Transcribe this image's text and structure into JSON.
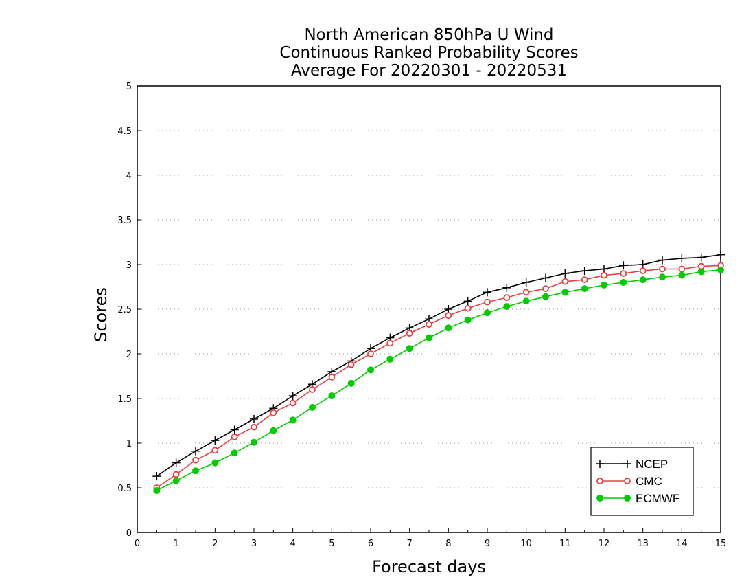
{
  "chart_data": {
    "type": "line",
    "title": [
      "North American 850hPa U Wind",
      "Continuous Ranked Probability Scores",
      "Average For 20220301 - 20220531"
    ],
    "xlabel": "Forecast days",
    "ylabel": "Scores",
    "xlim": [
      0,
      15
    ],
    "ylim": [
      0,
      5
    ],
    "xticks": [
      "0",
      "1",
      "2",
      "3",
      "4",
      "5",
      "6",
      "7",
      "8",
      "9",
      "10",
      "11",
      "12",
      "13",
      "14",
      "15"
    ],
    "yticks": [
      "0",
      "0.5",
      "1",
      "1.5",
      "2",
      "2.5",
      "3",
      "3.5",
      "4",
      "4.5",
      "5"
    ],
    "grid": "horizontal dotted",
    "legend_position": "bottom-right",
    "x": [
      0.5,
      1,
      1.5,
      2,
      2.5,
      3,
      3.5,
      4,
      4.5,
      5,
      5.5,
      6,
      6.5,
      7,
      7.5,
      8,
      8.5,
      9,
      9.5,
      10,
      10.5,
      11,
      11.5,
      12,
      12.5,
      13,
      13.5,
      14,
      14.5,
      15
    ],
    "series": [
      {
        "name": "NCEP",
        "color": "#000000",
        "marker": "plus",
        "values": [
          0.63,
          0.78,
          0.91,
          1.03,
          1.15,
          1.27,
          1.39,
          1.53,
          1.66,
          1.8,
          1.92,
          2.06,
          2.18,
          2.29,
          2.39,
          2.5,
          2.59,
          2.69,
          2.74,
          2.8,
          2.85,
          2.9,
          2.93,
          2.95,
          2.99,
          3.0,
          3.05,
          3.07,
          3.08,
          3.11
        ]
      },
      {
        "name": "CMC",
        "color": "#e84040",
        "marker": "open-circle",
        "values": [
          0.5,
          0.65,
          0.81,
          0.92,
          1.07,
          1.18,
          1.34,
          1.45,
          1.6,
          1.74,
          1.88,
          2.0,
          2.12,
          2.23,
          2.33,
          2.43,
          2.51,
          2.58,
          2.63,
          2.69,
          2.73,
          2.81,
          2.83,
          2.88,
          2.9,
          2.93,
          2.95,
          2.95,
          2.98,
          2.99
        ]
      },
      {
        "name": "ECMWF",
        "color": "#00cc00",
        "marker": "filled-circle",
        "values": [
          0.47,
          0.58,
          0.69,
          0.78,
          0.89,
          1.01,
          1.14,
          1.26,
          1.4,
          1.53,
          1.67,
          1.82,
          1.94,
          2.06,
          2.18,
          2.29,
          2.38,
          2.46,
          2.53,
          2.59,
          2.64,
          2.69,
          2.73,
          2.77,
          2.8,
          2.83,
          2.86,
          2.88,
          2.92,
          2.94
        ]
      }
    ]
  }
}
